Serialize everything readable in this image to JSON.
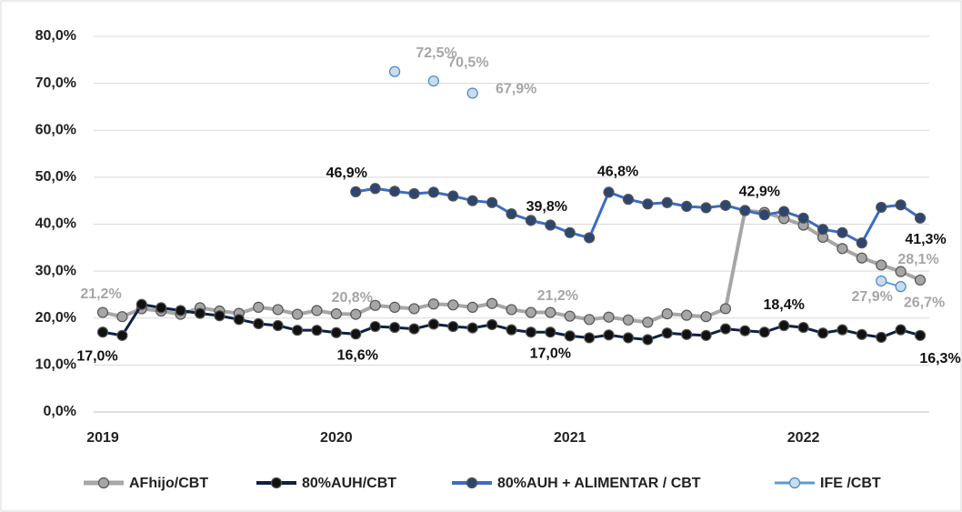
{
  "chart_data": {
    "type": "line",
    "categories": [
      "2019",
      null,
      null,
      null,
      null,
      null,
      null,
      null,
      null,
      null,
      null,
      null,
      "2020",
      null,
      null,
      null,
      null,
      null,
      null,
      null,
      null,
      null,
      null,
      null,
      "2021",
      null,
      null,
      null,
      null,
      null,
      null,
      null,
      null,
      null,
      null,
      null,
      "2022",
      null,
      null,
      null,
      null,
      null,
      null
    ],
    "series": [
      {
        "name": "AFhijo/CBT",
        "color": "#a6a6a6",
        "marker_color": "#a6a6a6",
        "values": [
          21.2,
          20.3,
          22.0,
          21.5,
          20.8,
          22.2,
          21.5,
          21.0,
          22.3,
          21.8,
          20.8,
          21.6,
          20.9,
          20.8,
          22.7,
          22.3,
          22.0,
          23.0,
          22.8,
          22.3,
          23.1,
          21.8,
          21.2,
          21.2,
          20.4,
          19.7,
          20.2,
          19.6,
          19.1,
          20.9,
          20.6,
          20.3,
          22.0,
          42.9,
          42.5,
          41.2,
          39.8,
          37.2,
          34.8,
          32.8,
          31.3,
          29.9,
          28.1
        ],
        "value_labels": [
          "21,2%",
          null,
          null,
          null,
          null,
          null,
          null,
          null,
          null,
          null,
          null,
          null,
          null,
          "20,8%",
          null,
          null,
          null,
          null,
          null,
          null,
          null,
          null,
          null,
          "21,2%",
          null,
          null,
          null,
          null,
          null,
          null,
          null,
          null,
          null,
          null,
          null,
          null,
          null,
          null,
          null,
          null,
          null,
          null,
          "28,1%"
        ]
      },
      {
        "name": "80%AUH/CBT",
        "color": "#0f1f45",
        "marker_color": "#111111",
        "values": [
          17.0,
          16.3,
          22.9,
          22.2,
          21.6,
          21.0,
          20.5,
          19.7,
          18.8,
          18.4,
          17.4,
          17.4,
          16.9,
          16.6,
          18.2,
          18.0,
          17.7,
          18.7,
          18.2,
          17.9,
          18.6,
          17.5,
          17.0,
          17.0,
          16.2,
          15.8,
          16.4,
          15.8,
          15.4,
          16.8,
          16.5,
          16.3,
          17.7,
          17.3,
          17.0,
          18.4,
          18.0,
          16.8,
          17.5,
          16.5,
          15.9,
          17.5,
          16.3
        ],
        "value_labels": [
          "17,0%",
          null,
          null,
          null,
          null,
          null,
          null,
          null,
          null,
          null,
          null,
          null,
          null,
          "16,6%",
          null,
          null,
          null,
          null,
          null,
          null,
          null,
          null,
          null,
          "17,0%",
          null,
          null,
          null,
          null,
          null,
          null,
          null,
          null,
          null,
          null,
          null,
          "18,4%",
          null,
          null,
          null,
          null,
          null,
          null,
          "16,3%"
        ]
      },
      {
        "name": "80%AUH + ALIMENTAR / CBT",
        "color": "#3b6cc6",
        "marker_color": "#2d4670",
        "values": [
          null,
          null,
          null,
          null,
          null,
          null,
          null,
          null,
          null,
          null,
          null,
          null,
          null,
          46.9,
          47.6,
          47.0,
          46.5,
          46.8,
          46.0,
          45.0,
          44.6,
          42.2,
          40.8,
          39.8,
          38.2,
          37.1,
          46.8,
          45.3,
          44.3,
          44.6,
          43.8,
          43.5,
          44.0,
          42.9,
          42.0,
          42.7,
          41.3,
          38.9,
          38.2,
          36.0,
          43.6,
          44.1,
          41.3
        ],
        "value_labels": [
          null,
          null,
          null,
          null,
          null,
          null,
          null,
          null,
          null,
          null,
          null,
          null,
          null,
          "46,9%",
          null,
          null,
          null,
          null,
          null,
          null,
          null,
          null,
          null,
          "39,8%",
          null,
          null,
          "46,8%",
          null,
          null,
          null,
          null,
          null,
          null,
          "42,9%",
          null,
          null,
          null,
          null,
          null,
          null,
          null,
          null,
          "41,3%"
        ]
      },
      {
        "name": "IFE /CBT",
        "color": "#5b9bd5",
        "marker_color": "#c9dcf0",
        "values": [
          null,
          null,
          null,
          null,
          null,
          null,
          null,
          null,
          null,
          null,
          null,
          null,
          null,
          null,
          null,
          72.5,
          null,
          70.5,
          null,
          67.9,
          null,
          null,
          null,
          null,
          null,
          null,
          null,
          null,
          null,
          null,
          null,
          null,
          null,
          null,
          null,
          null,
          null,
          null,
          null,
          null,
          27.9,
          26.7,
          null
        ],
        "value_labels": [
          null,
          null,
          null,
          null,
          null,
          null,
          null,
          null,
          null,
          null,
          null,
          null,
          null,
          null,
          null,
          "72,5%",
          null,
          "70,5%",
          null,
          "67,9%",
          null,
          null,
          null,
          null,
          null,
          null,
          null,
          null,
          null,
          null,
          null,
          null,
          null,
          null,
          null,
          null,
          null,
          null,
          null,
          null,
          "27,9%",
          "26,7%",
          null
        ]
      }
    ],
    "ylim": [
      0,
      80
    ],
    "yticks": [
      {
        "value": 0,
        "label": "0,0%"
      },
      {
        "value": 10,
        "label": "10,0%"
      },
      {
        "value": 20,
        "label": "20,0%"
      },
      {
        "value": 30,
        "label": "30,0%"
      },
      {
        "value": 40,
        "label": "40,0%"
      },
      {
        "value": 50,
        "label": "50,0%"
      },
      {
        "value": 60,
        "label": "60,0%"
      },
      {
        "value": 70,
        "label": "70,0%"
      },
      {
        "value": 80,
        "label": "80,0%"
      }
    ],
    "grid": true,
    "legend": "bottom"
  }
}
